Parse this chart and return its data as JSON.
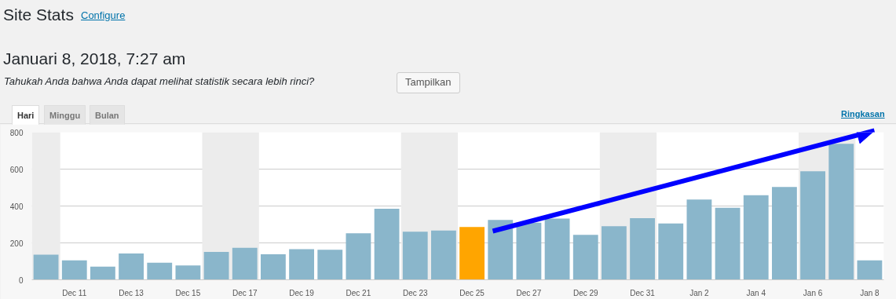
{
  "chart_data": {
    "type": "bar",
    "title": "Site Stats",
    "subtitle": "Januari 8, 2018, 7:27 am",
    "annotations": [
      "Configure",
      "Tahukah Anda bahwa Anda dapat melihat statistik secara lebih rinci?",
      "Tampilkan",
      "Hari",
      "Minggu",
      "Bulan",
      "Ringkasan"
    ],
    "x": [
      "2017-12-10",
      "2017-12-11",
      "2017-12-12",
      "2017-12-13",
      "2017-12-14",
      "2017-12-15",
      "2017-12-16",
      "2017-12-17",
      "2017-12-18",
      "2017-12-19",
      "2017-12-20",
      "2017-12-21",
      "2017-12-22",
      "2017-12-23",
      "2017-12-24",
      "2017-12-25",
      "2017-12-26",
      "2017-12-27",
      "2017-12-28",
      "2017-12-29",
      "2017-12-30",
      "2017-12-31",
      "2018-01-01",
      "2018-01-02",
      "2018-01-03",
      "2018-01-04",
      "2018-01-05",
      "2018-01-06",
      "2018-01-07",
      "2018-01-08"
    ],
    "values": [
      136,
      105,
      71,
      143,
      93,
      78,
      151,
      173,
      138,
      166,
      163,
      252,
      385,
      261,
      267,
      286,
      325,
      310,
      332,
      244,
      290,
      334,
      305,
      435,
      390,
      458,
      503,
      588,
      737,
      105
    ],
    "colors": [
      "#8ab6cb",
      "#8ab6cb",
      "#8ab6cb",
      "#8ab6cb",
      "#8ab6cb",
      "#8ab6cb",
      "#8ab6cb",
      "#8ab6cb",
      "#8ab6cb",
      "#8ab6cb",
      "#8ab6cb",
      "#8ab6cb",
      "#8ab6cb",
      "#8ab6cb",
      "#8ab6cb",
      "#ffa500",
      "#8ab6cb",
      "#8ab6cb",
      "#8ab6cb",
      "#8ab6cb",
      "#8ab6cb",
      "#8ab6cb",
      "#8ab6cb",
      "#8ab6cb",
      "#8ab6cb",
      "#8ab6cb",
      "#8ab6cb",
      "#8ab6cb",
      "#8ab6cb",
      "#8ab6cb"
    ],
    "xlim": [
      "2017-12-09T12:00",
      "2018-01-08T12:00"
    ],
    "xticks": [
      {
        "value": "2017-12-11",
        "label": "Dec 11"
      },
      {
        "value": "2017-12-13",
        "label": "Dec 13"
      },
      {
        "value": "2017-12-15",
        "label": "Dec 15"
      },
      {
        "value": "2017-12-17",
        "label": "Dec 17"
      },
      {
        "value": "2017-12-19",
        "label": "Dec 19"
      },
      {
        "value": "2017-12-21",
        "label": "Dec 21"
      },
      {
        "value": "2017-12-23",
        "label": "Dec 23"
      },
      {
        "value": "2017-12-25",
        "label": "Dec 25"
      },
      {
        "value": "2017-12-27",
        "label": "Dec 27"
      },
      {
        "value": "2017-12-29",
        "label": "Dec 29"
      },
      {
        "value": "2017-12-31",
        "label": "Dec 31"
      },
      {
        "value": "2018-01-02",
        "label": "Jan 2"
      },
      {
        "value": "2018-01-04",
        "label": "Jan 4"
      },
      {
        "value": "2018-01-06",
        "label": "Jan 6"
      },
      {
        "value": "2018-01-08",
        "label": "Jan 8"
      }
    ],
    "ylim": [
      0,
      800
    ],
    "yticks": [
      0,
      200,
      400,
      600,
      800
    ],
    "grid": "y",
    "bands": [
      {
        "axis": "x",
        "from": "2017-12-09T12:00",
        "to": "2017-12-10T12:00",
        "color": "#ececec"
      },
      {
        "axis": "x",
        "from": "2017-12-15T12:00",
        "to": "2017-12-17T12:00",
        "color": "#ececec"
      },
      {
        "axis": "x",
        "from": "2017-12-22T12:00",
        "to": "2017-12-24T12:00",
        "color": "#ececec"
      },
      {
        "axis": "x",
        "from": "2017-12-29T12:00",
        "to": "2017-12-31T12:00",
        "color": "#ececec"
      },
      {
        "axis": "x",
        "from": "2018-01-05T12:00",
        "to": "2018-01-07T12:00",
        "color": "#ececec"
      }
    ]
  }
}
